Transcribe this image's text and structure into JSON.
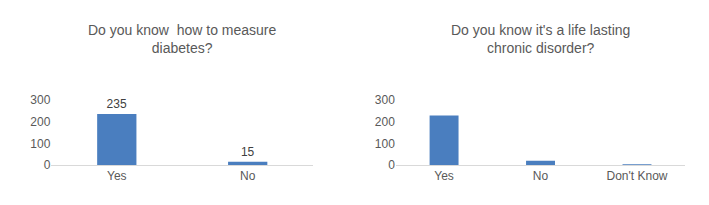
{
  "chart_data": [
    {
      "type": "bar",
      "title": "Do you know  how to measure diabetes?",
      "categories": [
        "Yes",
        "No"
      ],
      "values": [
        235,
        15
      ],
      "color": "#4a7ebf",
      "ylim": [
        0,
        300
      ],
      "yticks": [
        0,
        100,
        200,
        300
      ],
      "grid": false,
      "data_labels": true
    },
    {
      "type": "bar",
      "title": "Do you know it's a life lasting chronic disorder?",
      "categories": [
        "Yes",
        "No",
        "Don't Know"
      ],
      "values": [
        228,
        20,
        3
      ],
      "color": "#4a7ebf",
      "ylim": [
        0,
        300
      ],
      "yticks": [
        0,
        100,
        200,
        300
      ],
      "grid": false,
      "data_labels": false
    }
  ]
}
